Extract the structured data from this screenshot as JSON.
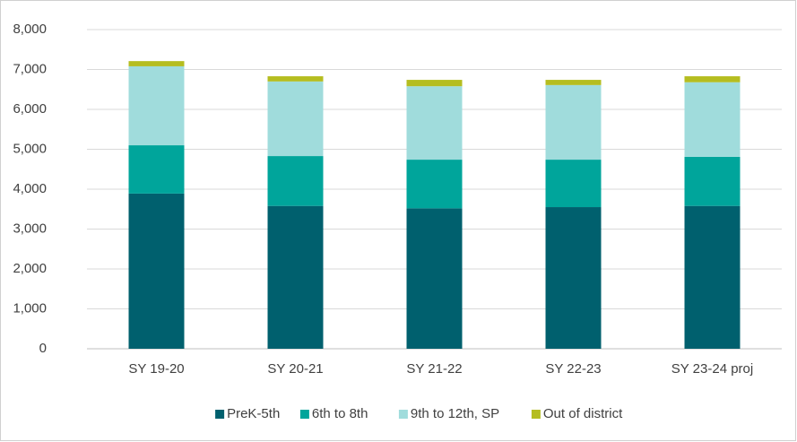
{
  "chart_data": {
    "type": "stacked_bar",
    "categories": [
      "SY 19-20",
      "SY 20-21",
      "SY 21-22",
      "SY 22-23",
      "SY 23-24 proj"
    ],
    "series": [
      {
        "name": "PreK-5th",
        "color": "#00606e",
        "values": [
          3890,
          3580,
          3520,
          3550,
          3580
        ]
      },
      {
        "name": "6th to 8th",
        "color": "#00a59b",
        "values": [
          1210,
          1250,
          1220,
          1190,
          1230
        ]
      },
      {
        "name": "9th to 12th, SP",
        "color": "#a0dcdc",
        "values": [
          1980,
          1870,
          1840,
          1870,
          1870
        ]
      },
      {
        "name": "Out of district",
        "color": "#b5bd20",
        "values": [
          130,
          130,
          160,
          130,
          150
        ]
      }
    ],
    "ylim": [
      0,
      8000
    ],
    "yticks": [
      0,
      {
        "value": 1000,
        "label": "1,000"
      },
      {
        "value": 2000,
        "label": "2,000"
      },
      {
        "value": 3000,
        "label": "3,000"
      },
      {
        "value": 4000,
        "label": "4,000"
      },
      {
        "value": 5000,
        "label": "5,000"
      },
      {
        "value": 6000,
        "label": "6,000"
      },
      {
        "value": 7000,
        "label": "7,000"
      },
      {
        "value": 8000,
        "label": "8,000"
      }
    ],
    "grid": true,
    "legend": "bottom"
  }
}
